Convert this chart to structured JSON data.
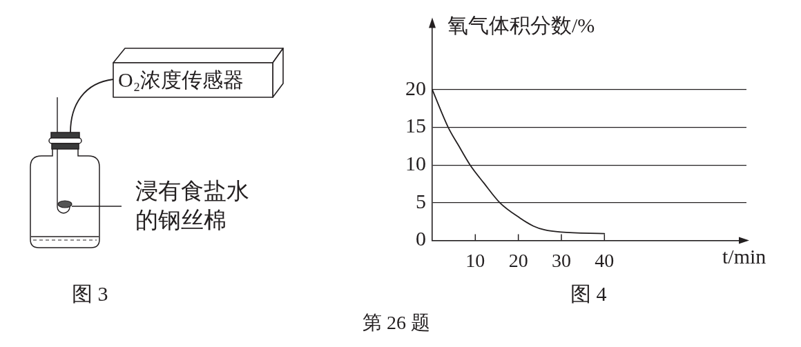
{
  "chart_data": {
    "type": "line",
    "xlabel": "t/min",
    "ylabel": "氧气体积分数/%",
    "x": [
      0,
      3.7,
      6.1,
      8.8,
      12,
      15.7,
      20.3,
      23.5,
      26.1,
      29.9,
      40
    ],
    "series": [
      {
        "color": "#231f20",
        "values": [
          20,
          15,
          12.6,
          10,
          7.6,
          5,
          3,
          1.9,
          1.4,
          1.1,
          0.9
        ]
      }
    ],
    "xlim": [
      0,
      73
    ],
    "ylim": [
      0,
      29
    ],
    "xticks": [
      10,
      20,
      30,
      40
    ],
    "yticks": [
      0,
      5,
      10,
      15,
      20
    ],
    "grid": "y",
    "marker": "none",
    "line_style": "solid",
    "annotations": [
      "O₂浓度传感器",
      "浸有食盐水的钢丝棉",
      "图 3",
      "图 4",
      "第 26 题"
    ]
  }
}
